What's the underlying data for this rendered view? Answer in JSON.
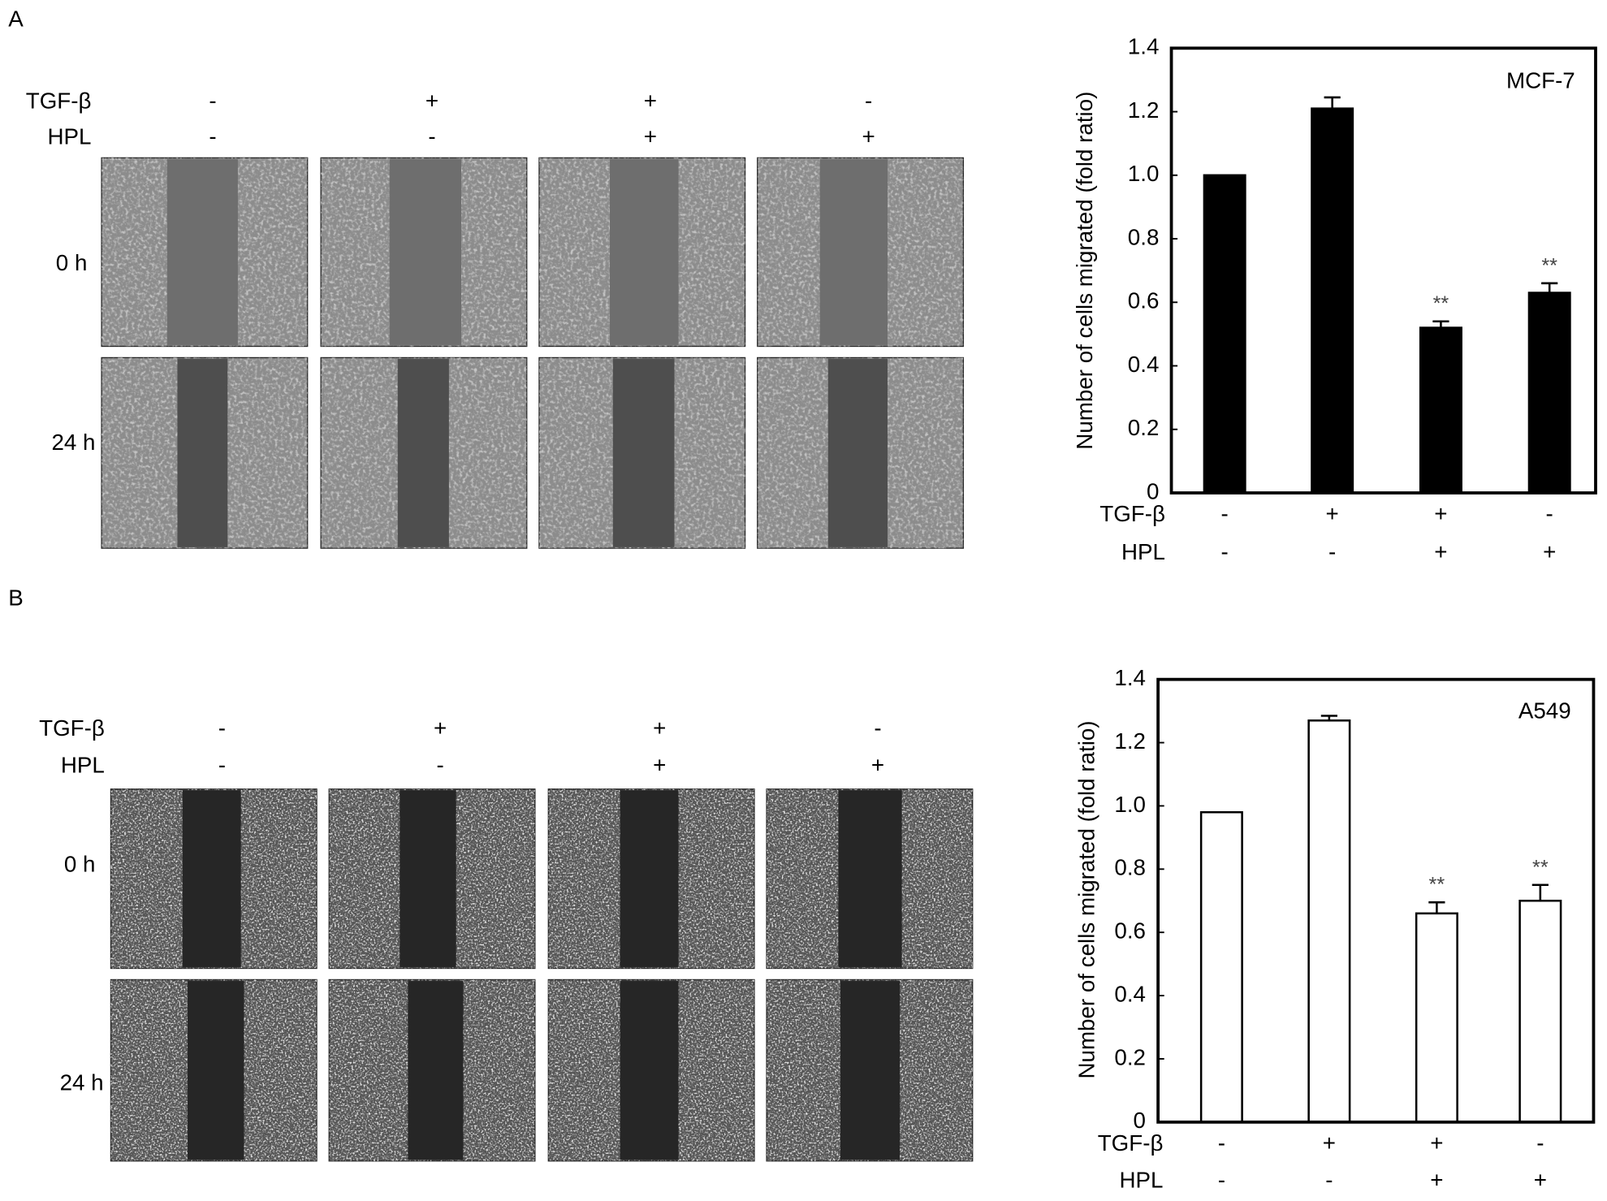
{
  "panels": [
    {
      "label": "A",
      "conditions": [
        {
          "name": "TGF-β",
          "signs": [
            "-",
            "+",
            "+",
            "-"
          ]
        },
        {
          "name": "HPL",
          "signs": [
            "-",
            "-",
            "+",
            "+"
          ]
        }
      ],
      "rows": [
        "0 h",
        "24 h"
      ]
    },
    {
      "label": "B",
      "conditions": [
        {
          "name": "TGF-β",
          "signs": [
            "-",
            "+",
            "+",
            "-"
          ]
        },
        {
          "name": "HPL",
          "signs": [
            "-",
            "-",
            "+",
            "+"
          ]
        }
      ],
      "rows": [
        "0 h",
        "24 h"
      ]
    }
  ],
  "chart_data": [
    {
      "type": "bar",
      "ylabel": "Number of cells migrated (fold ratio)",
      "annotation": "MCF-7",
      "values": [
        1.0,
        1.21,
        0.52,
        0.63
      ],
      "errors": [
        0,
        0.035,
        0.02,
        0.03
      ],
      "significance": [
        {
          "index": 2,
          "text": "**"
        },
        {
          "index": 3,
          "text": "**"
        }
      ],
      "conditions": [
        {
          "name": "TGF-β",
          "signs": [
            "-",
            "+",
            "+",
            "-"
          ]
        },
        {
          "name": "HPL",
          "signs": [
            "-",
            "-",
            "+",
            "+"
          ]
        }
      ],
      "color": "#000000",
      "edgecolor": "#000000",
      "ylim": [
        0,
        1.4
      ],
      "yticks": [
        0,
        0.2,
        0.4,
        0.6,
        0.8,
        {
          "value": 1,
          "label": "1.0"
        },
        1.2,
        1.4
      ],
      "grid": false
    },
    {
      "type": "bar",
      "ylabel": "Number of cells migrated (fold ratio)",
      "annotation": "A549",
      "values": [
        0.98,
        1.27,
        0.66,
        0.7
      ],
      "errors": [
        0,
        0.015,
        0.035,
        0.05
      ],
      "significance": [
        {
          "index": 2,
          "text": "**"
        },
        {
          "index": 3,
          "text": "**"
        }
      ],
      "conditions": [
        {
          "name": "TGF-β",
          "signs": [
            "-",
            "+",
            "+",
            "-"
          ]
        },
        {
          "name": "HPL",
          "signs": [
            "-",
            "-",
            "+",
            "+"
          ]
        }
      ],
      "color": "#ffffff",
      "edgecolor": "#000000",
      "ylim": [
        0,
        1.4
      ],
      "yticks": [
        0,
        0.2,
        0.4,
        0.6,
        0.8,
        {
          "value": 1,
          "label": "1.0"
        },
        1.2,
        1.4
      ],
      "grid": false
    }
  ]
}
